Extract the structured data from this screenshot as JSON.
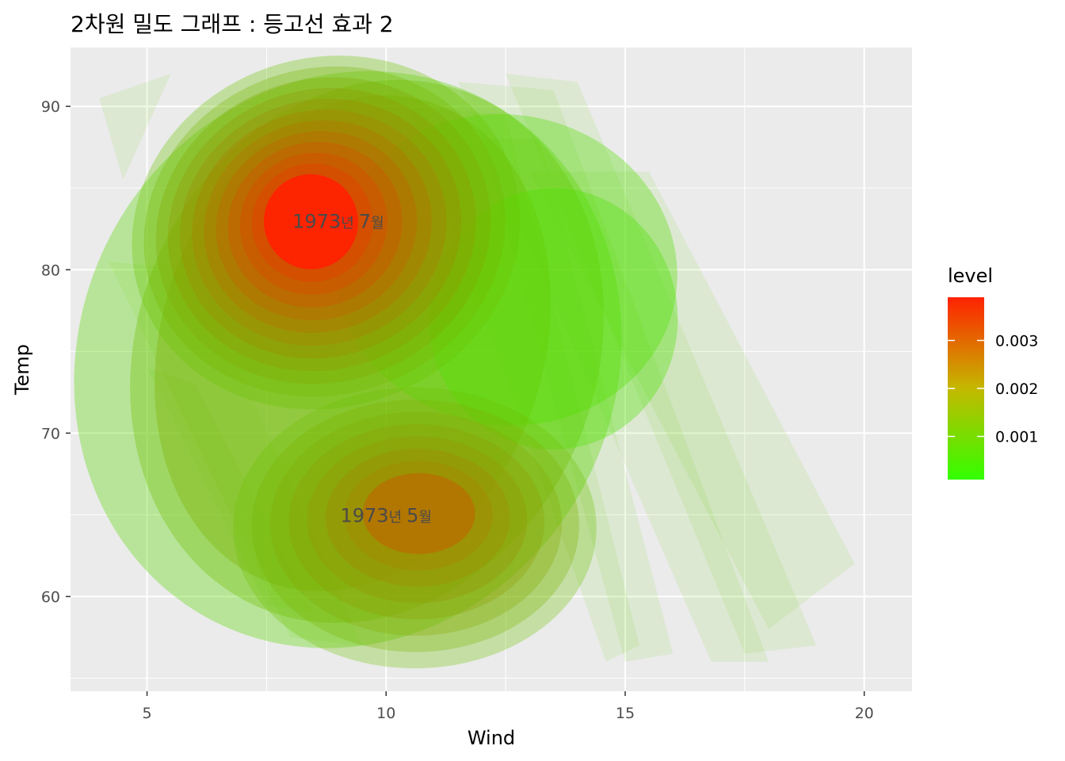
{
  "chart_data": {
    "type": "density2d_filled",
    "title": "2차원 밀도 그래프 : 등고선 효과 2",
    "xlabel": "Wind",
    "ylabel": "Temp",
    "xlim": [
      3.4,
      21.0
    ],
    "ylim": [
      54.2,
      93.6
    ],
    "x_ticks": [
      5,
      10,
      15,
      20
    ],
    "y_ticks": [
      60,
      70,
      80,
      90
    ],
    "grid": true,
    "legend": {
      "title": "level",
      "position": "right",
      "low_color": "#33ff00",
      "high_color": "#ff2200",
      "range": [
        0.0001,
        0.0039
      ],
      "ticks": [
        0.001,
        0.002,
        0.003
      ],
      "tick_labels": [
        "0.001",
        "0.002",
        "0.003"
      ]
    },
    "fill_alpha": 0.1,
    "peaks": [
      {
        "x": 8.4,
        "y": 83.0,
        "density": 0.0039
      },
      {
        "x": 10.7,
        "y": 65.2,
        "density": 0.0026
      }
    ],
    "annotations": [
      {
        "x": 9.0,
        "y": 83.0,
        "year": "1973",
        "year_unit": "년",
        "month": "7",
        "month_unit": "월"
      },
      {
        "x": 10.0,
        "y": 65.0,
        "year": "1973",
        "year_unit": "년",
        "month": "5",
        "month_unit": "월"
      }
    ]
  }
}
